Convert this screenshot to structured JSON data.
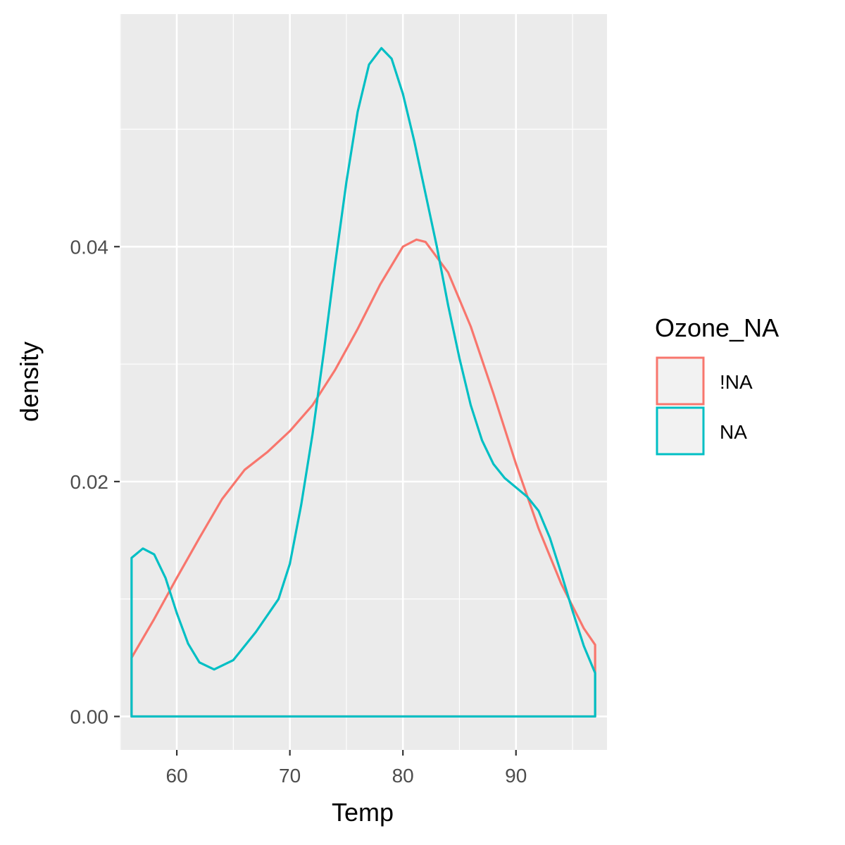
{
  "chart_data": {
    "type": "line",
    "xlabel": "Temp",
    "ylabel": "density",
    "xlim": [
      54.95,
      98.05
    ],
    "ylim": [
      -0.00285,
      0.0598
    ],
    "x_ticks": [
      60,
      70,
      80,
      90
    ],
    "x_tick_labels": [
      "60",
      "70",
      "80",
      "90"
    ],
    "y_ticks": [
      0.0,
      0.02,
      0.04
    ],
    "y_tick_labels": [
      "0.00",
      "0.02",
      "0.04"
    ],
    "grid": true,
    "legend": {
      "title": "Ozone_NA",
      "position": "right",
      "entries": [
        "!NA",
        "NA"
      ]
    },
    "series": [
      {
        "name": "!NA",
        "color": "#F8766D",
        "x": [
          56,
          58,
          60,
          62,
          64,
          66,
          68,
          70,
          72,
          74,
          76,
          78,
          80,
          81.2,
          82,
          84,
          86,
          88,
          90,
          92,
          94,
          96,
          97
        ],
        "y": [
          0.005,
          0.0083,
          0.0118,
          0.0152,
          0.0185,
          0.021,
          0.0225,
          0.0243,
          0.0265,
          0.0295,
          0.033,
          0.0368,
          0.04,
          0.0406,
          0.0404,
          0.0378,
          0.0332,
          0.0275,
          0.0215,
          0.016,
          0.0113,
          0.0075,
          0.0061
        ]
      },
      {
        "name": "NA",
        "color": "#00BFC4",
        "x": [
          56,
          57,
          58,
          59,
          60,
          61,
          62,
          63.3,
          65,
          67,
          69,
          70,
          71,
          72,
          73,
          74,
          75,
          76,
          77,
          78.1,
          79,
          80,
          81,
          82,
          83,
          84,
          85,
          86,
          87,
          88,
          89,
          90,
          91,
          92,
          93,
          94,
          95,
          96,
          97
        ],
        "y": [
          0.0135,
          0.0143,
          0.0138,
          0.0118,
          0.0088,
          0.0062,
          0.0046,
          0.004,
          0.0048,
          0.0072,
          0.01,
          0.013,
          0.018,
          0.024,
          0.031,
          0.0385,
          0.0455,
          0.0515,
          0.0555,
          0.0569,
          0.056,
          0.053,
          0.049,
          0.0445,
          0.04,
          0.035,
          0.0305,
          0.0265,
          0.0235,
          0.0215,
          0.0203,
          0.0195,
          0.0187,
          0.0175,
          0.0152,
          0.0122,
          0.009,
          0.006,
          0.0037
        ]
      }
    ]
  }
}
